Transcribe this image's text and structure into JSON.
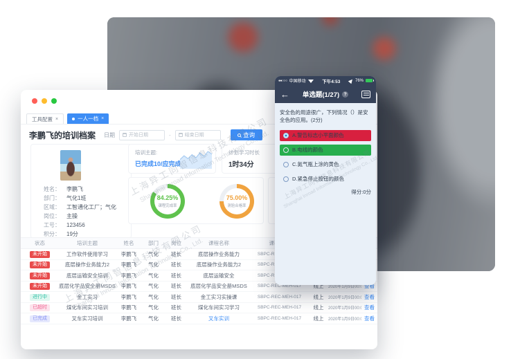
{
  "watermark": {
    "cn": "上海异工同智信息科技有限公司",
    "en": "Shanghai Inroad Information Technology Co., Ltd."
  },
  "window": {
    "tabs": [
      {
        "label": "工具配置",
        "close": "×",
        "active": false
      },
      {
        "label": "一人一档",
        "close": "×",
        "active": true
      }
    ],
    "title": "李鹏飞的培训档案",
    "filter": {
      "date_label": "日期",
      "start_placeholder": "开始日期",
      "separator": "-",
      "end_placeholder": "结束日期",
      "search_label": "查询"
    },
    "profile": {
      "fields": [
        {
          "label": "姓名：",
          "value": "李鹏飞"
        },
        {
          "label": "部门：",
          "value": "气化1班"
        },
        {
          "label": "区域：",
          "value": "工智通化工厂；气化"
        },
        {
          "label": "岗位：",
          "value": "主操"
        },
        {
          "label": "工号：",
          "value": "123456"
        },
        {
          "label": "积分：",
          "value": "19分"
        }
      ]
    },
    "summary": {
      "topic_label": "培训主题:",
      "topic_value": "已完成10/应完成12",
      "plan_label": "计划学习时长",
      "plan_value": "1时34分",
      "sparkline": [
        38,
        55,
        42,
        60,
        46,
        68,
        52,
        74,
        62
      ]
    },
    "donuts": [
      {
        "value": "84.25%",
        "label": "课程完成率",
        "percent": 84.25,
        "color": "#5fc24d"
      },
      {
        "value": "75.00%",
        "label": "测验合格率",
        "percent": 75.0,
        "color": "#f0a33f"
      }
    ],
    "table": {
      "headers": [
        "状态",
        "培训主题",
        "姓名",
        "部门",
        "岗位",
        "课程名称",
        "课程编号",
        "方式",
        "开始时间",
        "操作"
      ],
      "rows": [
        {
          "status": "未开始",
          "status_type": "red",
          "topic": "工作软件使用学习",
          "name": "李鹏飞",
          "dept": "气化",
          "post": "班长",
          "course": "底层操作业务能力",
          "course_link": false,
          "code": "SBPC-REC-MEH-017",
          "mode": "线上",
          "time": "2020年1月9日00:01",
          "action": "查看"
        },
        {
          "status": "未开始",
          "status_type": "red",
          "topic": "底层操作业务能力2",
          "name": "李鹏飞",
          "dept": "气化",
          "post": "班长",
          "course": "底层操作业务能力2",
          "course_link": false,
          "code": "SBPC-REC-MEH-017",
          "mode": "线上",
          "time": "2020年1月9日00:01",
          "action": "查看"
        },
        {
          "status": "未开始",
          "status_type": "red",
          "topic": "底层运输安全培训",
          "name": "李鹏飞",
          "dept": "气化",
          "post": "班长",
          "course": "底层运输安全",
          "course_link": false,
          "code": "SBPC-REC-MEH-017",
          "mode": "线上",
          "time": "2020年1月9日00:01",
          "action": "查看"
        },
        {
          "status": "未开始",
          "status_type": "red",
          "topic": "底层化学品安全册MSDS",
          "name": "李鹏飞",
          "dept": "气化",
          "post": "班长",
          "course": "底层化学品安全册MSDS",
          "course_link": false,
          "code": "SBPC-REC-MEH-017",
          "mode": "线上",
          "time": "2020年1月9日00:01",
          "action": "查看"
        },
        {
          "status": "进行中",
          "status_type": "teal",
          "topic": "金工实习",
          "name": "李鹏飞",
          "dept": "气化",
          "post": "班长",
          "course": "金工实习实操课",
          "course_link": false,
          "code": "SBPC-REC-MEH-017",
          "mode": "线上",
          "time": "2020年1月9日00:01",
          "action": "查看"
        },
        {
          "status": "已超时",
          "status_type": "pink",
          "topic": "煤化车间实习培训",
          "name": "李鹏飞",
          "dept": "气化",
          "post": "班长",
          "course": "煤化车间实习学习",
          "course_link": false,
          "code": "SBPC-REC-MEH-017",
          "mode": "线上",
          "time": "2020年1月9日00:01",
          "action": "查看"
        },
        {
          "status": "已完成",
          "status_type": "purple",
          "topic": "叉车实习培训",
          "name": "李鹏飞",
          "dept": "气化",
          "post": "班长",
          "course": "叉车实训",
          "course_link": true,
          "code": "SBPC-REC-MEH-017",
          "mode": "线上",
          "time": "2020年1月9日00:01",
          "action": "查看"
        }
      ]
    }
  },
  "phone": {
    "status_bar": {
      "signal": "●●○○○",
      "carrier": "中国移动",
      "time": "下午4:53",
      "battery": "76%"
    },
    "nav": {
      "back": "←",
      "title": "单选题(1/27)",
      "help": "?"
    },
    "question": "安全色的用途很广，下列情况（）是安全色的应用。(2分)",
    "options": [
      {
        "label": "A.警告标志小平面颜色",
        "state": "wrong-selected"
      },
      {
        "label": "B.电线的颜色",
        "state": "correct"
      },
      {
        "label": "C.氮气瓶上涂的黄色",
        "state": "normal"
      },
      {
        "label": "D.紧急停止按钮的颜色",
        "state": "normal"
      }
    ],
    "score": "得分:0分"
  },
  "colors": {
    "accent_blue": "#3d8df5",
    "option_wrong_red": "#d8203f",
    "option_correct_green": "#27ae4e",
    "navy_bar": "#364259",
    "badge_red": "#e84b4b"
  }
}
